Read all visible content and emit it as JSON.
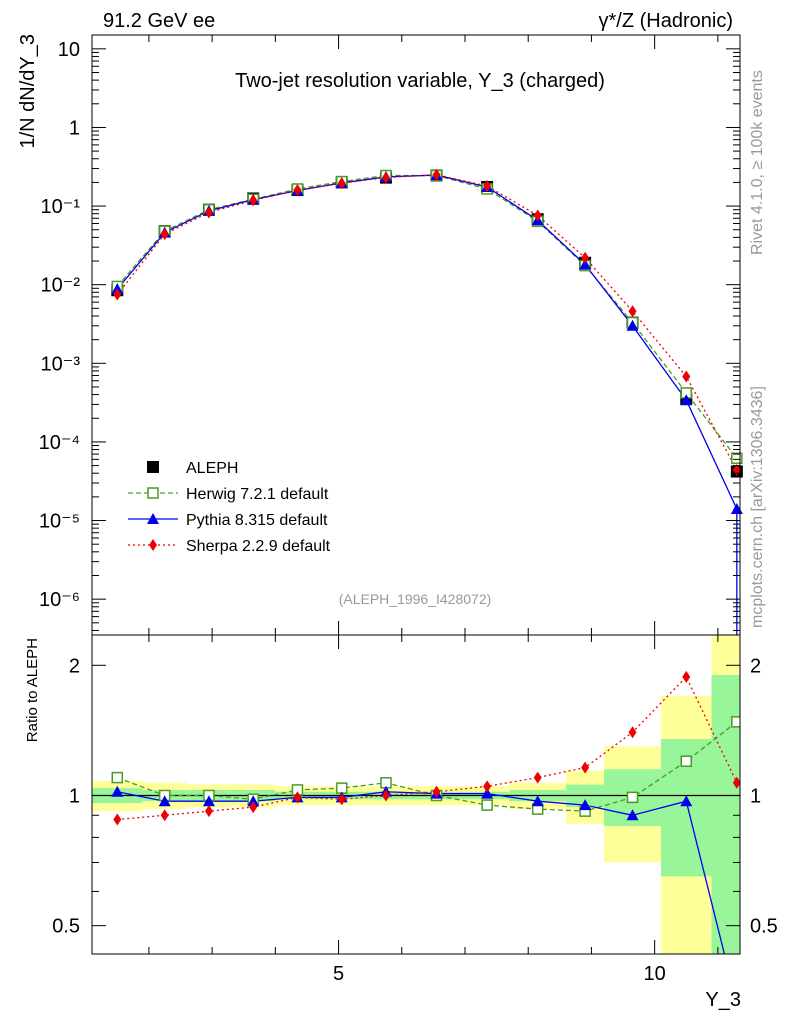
{
  "header": {
    "left": "91.2 GeV ee",
    "right": "γ*/Z (Hadronic)"
  },
  "side_labels": {
    "rivet": "Rivet 4.1.0, ≥ 100k events",
    "mcplots": "mcplots.cern.ch [arXiv:1306.3436]"
  },
  "chart_data": [
    {
      "type": "line",
      "panel": "main",
      "title": "Two-jet resolution variable, Y_3 (charged)",
      "analysis_tag": "(ALEPH_1996_I428072)",
      "xlabel": "Y_3",
      "ylabel": "1/N  dN/dY_3",
      "yscale": "log",
      "xlim": [
        1.1,
        11.35
      ],
      "ylim": [
        3.5e-07,
        15
      ],
      "y_ticks": [
        {
          "value": 10,
          "label": "10"
        },
        {
          "value": 1,
          "label": "1"
        },
        {
          "value": 0.1,
          "label": "10⁻¹"
        },
        {
          "value": 0.01,
          "label": "10⁻²"
        },
        {
          "value": 0.001,
          "label": "10⁻³"
        },
        {
          "value": 0.0001,
          "label": "10⁻⁴"
        },
        {
          "value": 1e-05,
          "label": "10⁻⁵"
        },
        {
          "value": 1e-06,
          "label": "10⁻⁶"
        }
      ],
      "x": [
        1.5,
        2.25,
        2.95,
        3.65,
        4.35,
        5.05,
        5.75,
        6.55,
        7.35,
        8.15,
        8.9,
        9.65,
        10.5,
        11.3
      ],
      "series": [
        {
          "name": "ALEPH",
          "color": "#000000",
          "marker": "square",
          "style": "none",
          "values": [
            0.0085,
            0.048,
            0.09,
            0.125,
            0.16,
            0.2,
            0.23,
            0.245,
            0.175,
            0.068,
            0.019,
            0.0033,
            0.00035,
            4.2e-05
          ]
        },
        {
          "name": "Herwig 7.2.1 default",
          "color": "#4a9a26",
          "marker": "open-square",
          "style": "dashed",
          "values": [
            0.0095,
            0.048,
            0.09,
            0.122,
            0.165,
            0.205,
            0.245,
            0.245,
            0.165,
            0.064,
            0.0175,
            0.0033,
            0.00042,
            6.2e-05
          ]
        },
        {
          "name": "Pythia 8.315 default",
          "color": "#0000ee",
          "marker": "triangle",
          "style": "solid",
          "values": [
            0.0088,
            0.046,
            0.087,
            0.121,
            0.158,
            0.197,
            0.235,
            0.248,
            0.175,
            0.066,
            0.018,
            0.003,
            0.00034,
            1.4e-05
          ]
        },
        {
          "name": "Sherpa 2.2.9 default",
          "color": "#ee0000",
          "marker": "diamond",
          "style": "dotted",
          "values": [
            0.0075,
            0.044,
            0.083,
            0.118,
            0.16,
            0.195,
            0.23,
            0.25,
            0.18,
            0.076,
            0.022,
            0.0046,
            0.00068,
            4.4e-05
          ]
        }
      ]
    },
    {
      "type": "line",
      "panel": "ratio",
      "ylabel": "Ratio to ALEPH",
      "xlabel": "Y_3",
      "yscale": "log",
      "ylim": [
        0.43,
        2.35
      ],
      "y_ticks": [
        {
          "value": 2,
          "label": "2"
        },
        {
          "value": 1,
          "label": "1"
        },
        {
          "value": 0.5,
          "label": "0.5"
        }
      ],
      "x_ticks": [
        {
          "value": 5,
          "label": "5"
        },
        {
          "value": 10,
          "label": "10"
        }
      ],
      "x": [
        1.5,
        2.25,
        2.95,
        3.65,
        4.35,
        5.05,
        5.75,
        6.55,
        7.35,
        8.15,
        8.9,
        9.65,
        10.5,
        11.3
      ],
      "bin_edges": [
        1.1,
        1.9,
        2.6,
        3.3,
        4.0,
        4.7,
        5.4,
        6.1,
        7.0,
        7.7,
        8.6,
        9.2,
        10.1,
        10.9,
        11.35
      ],
      "band_stat": [
        0.04,
        0.03,
        0.03,
        0.03,
        0.02,
        0.02,
        0.02,
        0.02,
        0.02,
        0.03,
        0.06,
        0.15,
        0.35,
        0.9
      ],
      "band_total": [
        0.08,
        0.07,
        0.06,
        0.06,
        0.05,
        0.05,
        0.05,
        0.05,
        0.05,
        0.07,
        0.14,
        0.3,
        0.7,
        1.5
      ],
      "series": [
        {
          "name": "Herwig 7.2.1 default",
          "color": "#4a9a26",
          "marker": "open-square",
          "style": "dashed",
          "values": [
            1.1,
            1.0,
            1.0,
            0.98,
            1.03,
            1.04,
            1.07,
            1.0,
            0.95,
            0.93,
            0.92,
            0.99,
            1.2,
            1.48
          ]
        },
        {
          "name": "Pythia 8.315 default",
          "color": "#0000ee",
          "marker": "triangle",
          "style": "solid",
          "values": [
            1.02,
            0.97,
            0.97,
            0.97,
            0.99,
            0.99,
            1.02,
            1.01,
            1.01,
            0.97,
            0.95,
            0.9,
            0.97,
            0.33
          ]
        },
        {
          "name": "Sherpa 2.2.9 default",
          "color": "#ee0000",
          "marker": "diamond",
          "style": "dotted",
          "values": [
            0.88,
            0.9,
            0.92,
            0.94,
            0.99,
            0.98,
            1.0,
            1.02,
            1.05,
            1.1,
            1.16,
            1.4,
            1.88,
            1.07
          ]
        }
      ]
    }
  ]
}
